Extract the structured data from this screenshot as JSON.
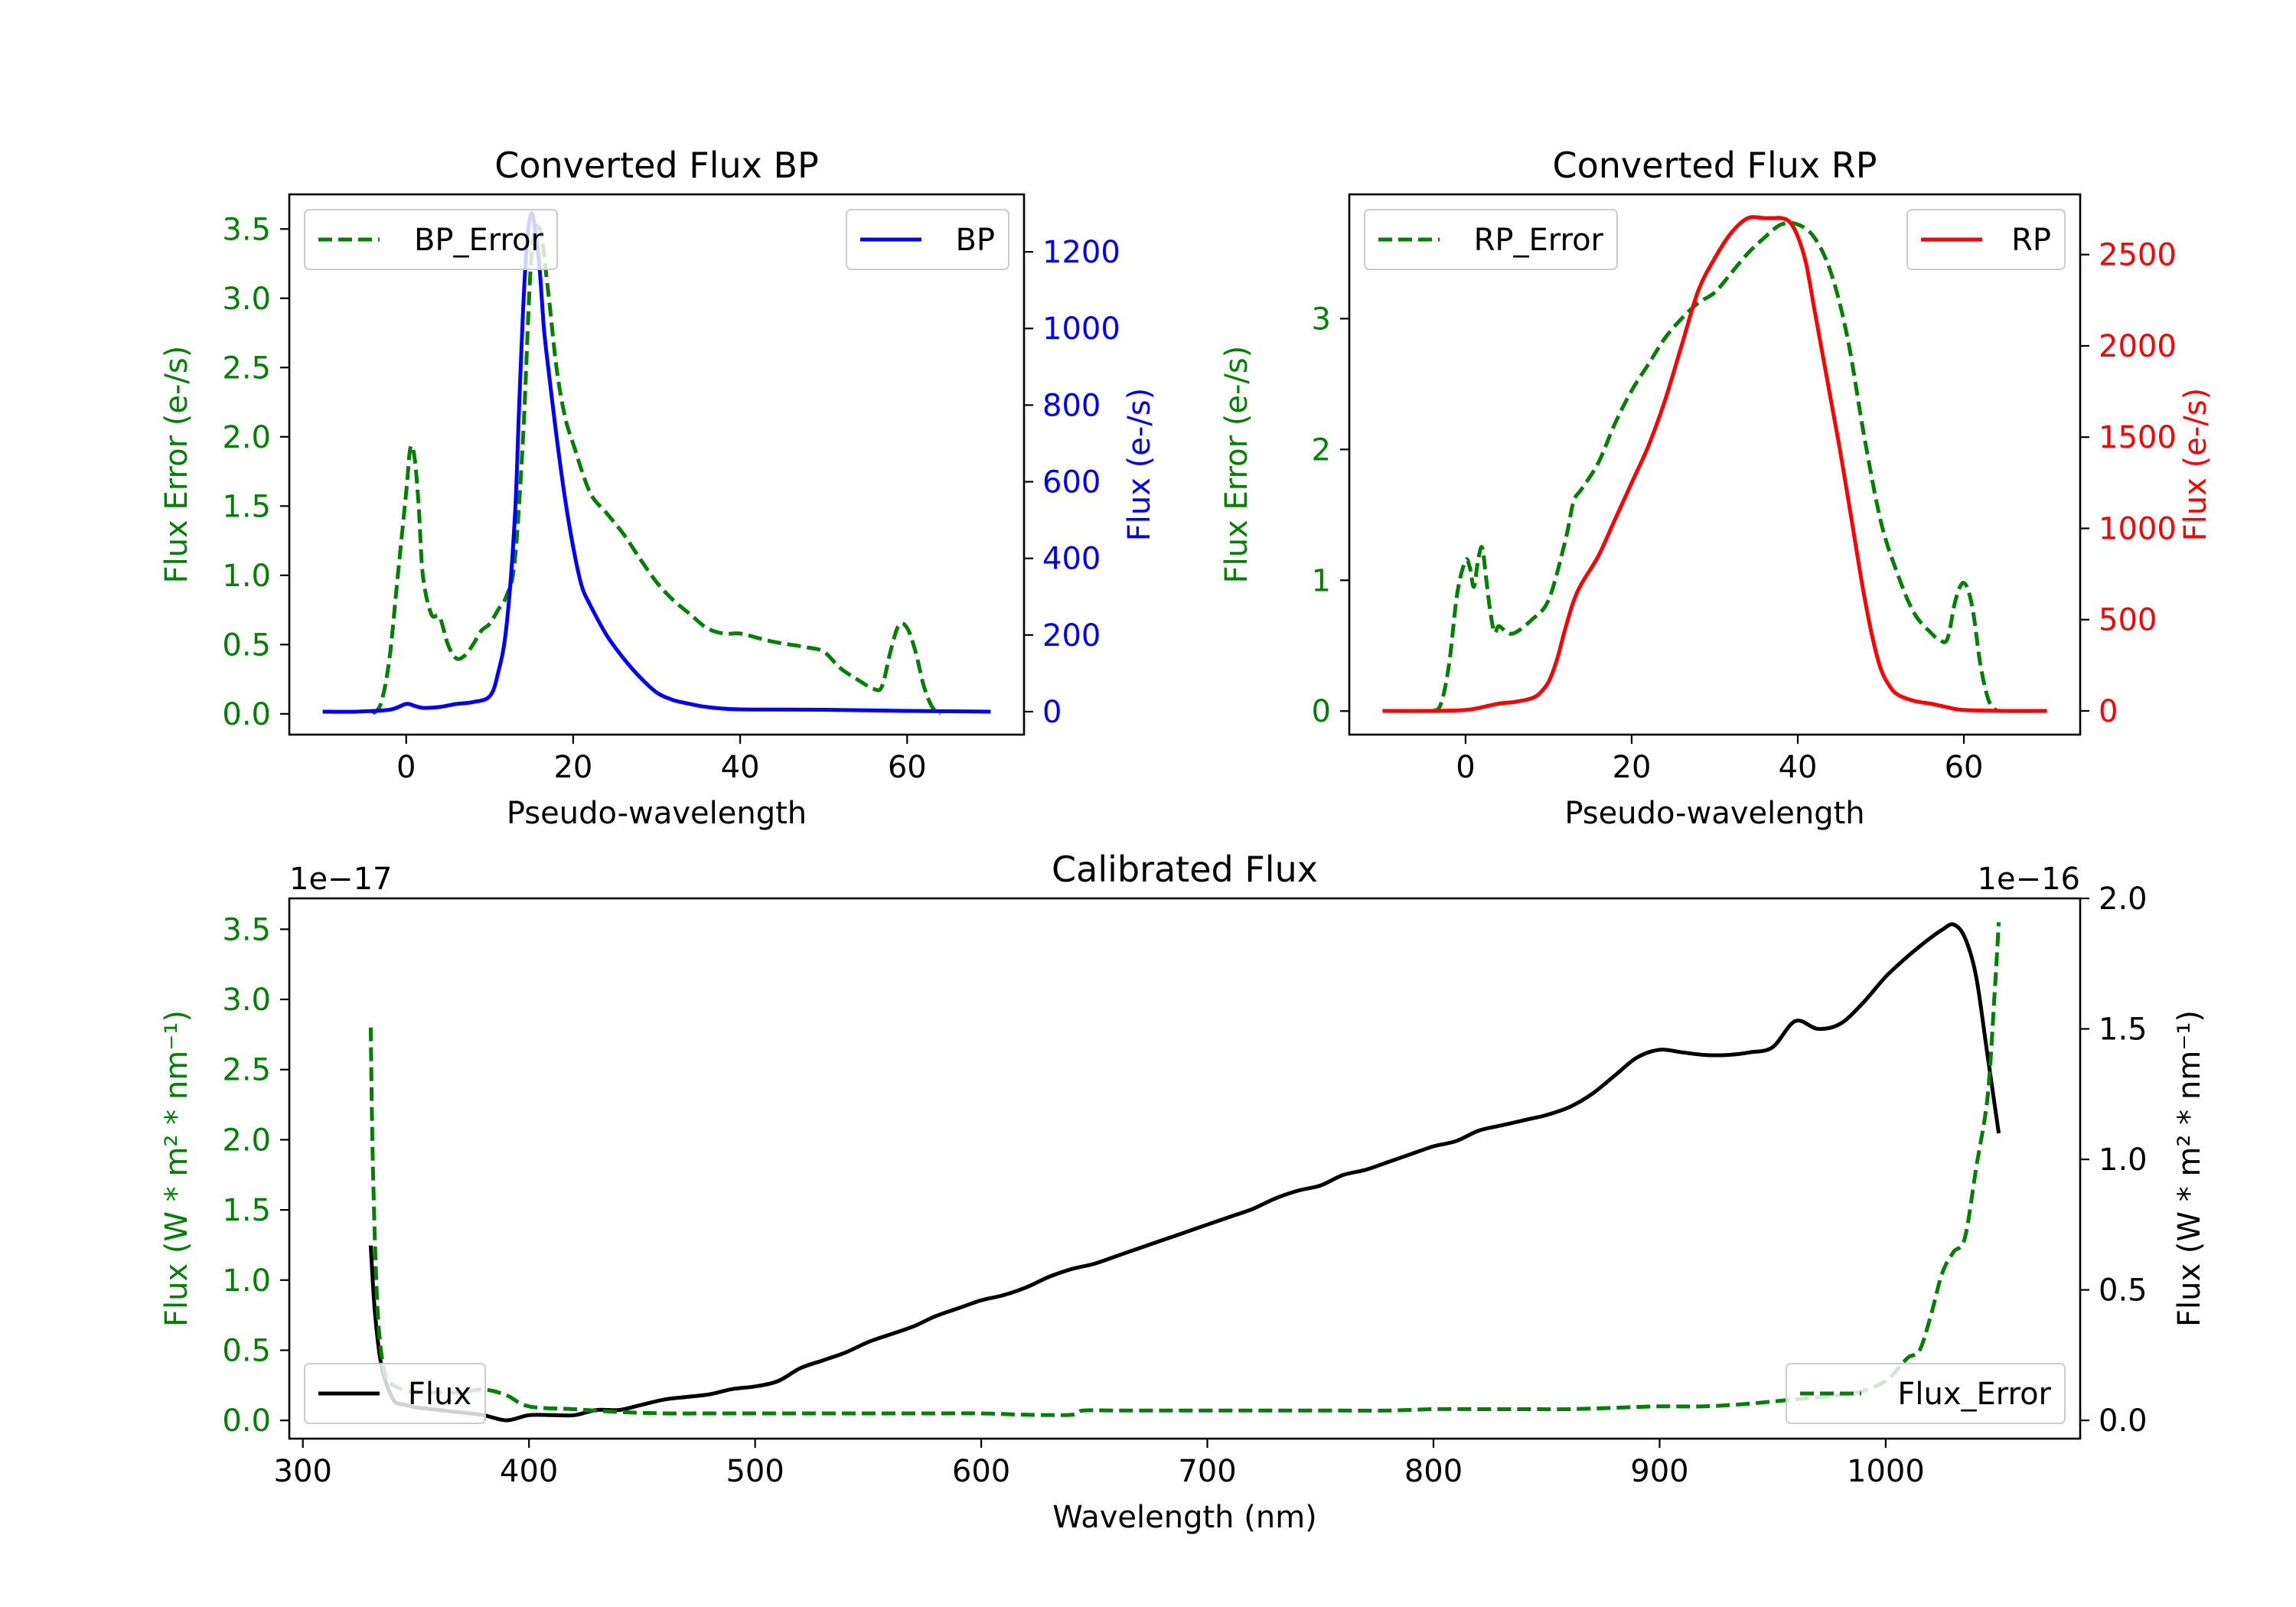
{
  "chart_data": [
    {
      "type": "line",
      "title": "Converted Flux BP",
      "xlabel": "Pseudo-wavelength",
      "ylabel_left": "Flux Error (e-/s)",
      "ylabel_right": "Flux (e-/s)",
      "xlim": [
        -14,
        74
      ],
      "ylim_left": [
        -0.15,
        3.75
      ],
      "ylim_right": [
        -60,
        1350
      ],
      "xticks": [
        0,
        20,
        40,
        60
      ],
      "yticks_left": [
        0.0,
        0.5,
        1.0,
        1.5,
        2.0,
        2.5,
        3.0,
        3.5
      ],
      "yticks_right": [
        0,
        200,
        400,
        600,
        800,
        1000,
        1200
      ],
      "ytick_labels_left": [
        "0.0",
        "0.5",
        "1.0",
        "1.5",
        "2.0",
        "2.5",
        "3.0",
        "3.5"
      ],
      "ytick_labels_right": [
        "0",
        "200",
        "400",
        "600",
        "800",
        "1000",
        "1200"
      ],
      "left_color": "#008000",
      "right_color": "#0000ff",
      "series": [
        {
          "name": "BP_Error",
          "axis": "left",
          "color": "#008000",
          "style": "dashed",
          "legend": "upper left",
          "x": [
            -4,
            -3,
            -2,
            -1,
            0,
            0.5,
            1,
            1.5,
            2,
            3,
            4,
            5,
            6,
            7,
            8,
            9,
            10,
            11,
            12,
            13,
            14,
            15,
            16,
            17,
            18,
            19,
            20,
            22,
            24,
            26,
            28,
            30,
            32,
            34,
            36,
            38,
            40,
            42,
            44,
            46,
            48,
            50,
            52,
            54,
            56,
            57,
            58,
            59,
            60,
            61,
            62,
            63,
            64
          ],
          "values": [
            0.0,
            0.08,
            0.4,
            1.0,
            1.6,
            1.92,
            1.85,
            1.5,
            1.0,
            0.72,
            0.7,
            0.5,
            0.4,
            0.42,
            0.5,
            0.6,
            0.65,
            0.75,
            0.85,
            1.1,
            2.0,
            3.3,
            3.5,
            3.05,
            2.5,
            2.15,
            1.95,
            1.6,
            1.45,
            1.3,
            1.12,
            0.95,
            0.82,
            0.72,
            0.62,
            0.58,
            0.58,
            0.55,
            0.52,
            0.5,
            0.48,
            0.45,
            0.33,
            0.25,
            0.18,
            0.2,
            0.45,
            0.64,
            0.62,
            0.45,
            0.2,
            0.05,
            0.0
          ]
        },
        {
          "name": "BP",
          "axis": "right",
          "color": "#0000ff",
          "style": "solid",
          "legend": "upper right",
          "x": [
            -10,
            -6,
            -2,
            0,
            1,
            2,
            4,
            6,
            8,
            10,
            11,
            12,
            13,
            13.5,
            14,
            14.5,
            15,
            15.5,
            16,
            16.5,
            17,
            18,
            19,
            20,
            21,
            22,
            24,
            26,
            28,
            30,
            32,
            34,
            36,
            40,
            50,
            60,
            70
          ],
          "values": [
            0,
            0,
            5,
            20,
            15,
            10,
            12,
            20,
            25,
            40,
            100,
            220,
            500,
            780,
            1050,
            1230,
            1300,
            1250,
            1150,
            1000,
            900,
            720,
            560,
            430,
            330,
            280,
            200,
            140,
            90,
            50,
            30,
            20,
            12,
            6,
            5,
            2,
            0
          ]
        }
      ]
    },
    {
      "type": "line",
      "title": "Converted Flux RP",
      "xlabel": "Pseudo-wavelength",
      "ylabel_left": "Flux Error (e-/s)",
      "ylabel_right": "Flux (e-/s)",
      "xlim": [
        -14,
        74
      ],
      "ylim_left": [
        -0.18,
        3.95
      ],
      "ylim_right": [
        -130,
        2830
      ],
      "xticks": [
        0,
        20,
        40,
        60
      ],
      "yticks_left": [
        0,
        1,
        2,
        3
      ],
      "yticks_right": [
        0,
        500,
        1000,
        1500,
        2000,
        2500
      ],
      "ytick_labels_left": [
        "0",
        "1",
        "2",
        "3"
      ],
      "ytick_labels_right": [
        "0",
        "500",
        "1000",
        "1500",
        "2000",
        "2500"
      ],
      "left_color": "#008000",
      "right_color": "#ff0000",
      "series": [
        {
          "name": "RP_Error",
          "axis": "left",
          "color": "#008000",
          "style": "dashed",
          "legend": "upper left",
          "x": [
            -4,
            -3,
            -2,
            -1,
            0,
            0.5,
            1,
            1.5,
            2,
            2.5,
            3,
            3.5,
            4,
            5,
            6,
            8,
            10,
            12,
            13,
            14,
            16,
            18,
            20,
            22,
            24,
            26,
            28,
            30,
            32,
            34,
            36,
            38,
            40,
            42,
            44,
            46,
            48,
            50,
            52,
            54,
            56,
            57,
            58,
            59,
            60,
            61,
            62,
            63,
            64
          ],
          "values": [
            0.0,
            0.05,
            0.35,
            0.9,
            1.15,
            1.1,
            0.95,
            1.15,
            1.25,
            1.0,
            0.75,
            0.6,
            0.65,
            0.6,
            0.6,
            0.7,
            0.85,
            1.3,
            1.6,
            1.7,
            1.9,
            2.2,
            2.45,
            2.65,
            2.85,
            3.0,
            3.12,
            3.2,
            3.35,
            3.5,
            3.62,
            3.72,
            3.72,
            3.62,
            3.35,
            2.85,
            2.1,
            1.45,
            1.05,
            0.75,
            0.6,
            0.55,
            0.55,
            0.85,
            0.98,
            0.8,
            0.35,
            0.08,
            0.0
          ]
        },
        {
          "name": "RP",
          "axis": "right",
          "color": "#ff0000",
          "style": "solid",
          "legend": "upper right",
          "x": [
            -10,
            -4,
            0,
            2,
            4,
            6,
            8,
            9,
            10,
            11,
            12,
            13,
            14,
            16,
            18,
            20,
            22,
            24,
            26,
            28,
            30,
            32,
            34,
            36,
            37,
            38,
            39,
            40,
            41,
            42,
            43,
            44,
            45,
            46,
            47,
            48,
            49,
            50,
            51,
            52,
            54,
            56,
            58,
            60,
            65,
            70
          ],
          "values": [
            0,
            0,
            5,
            20,
            40,
            50,
            70,
            100,
            160,
            280,
            450,
            600,
            700,
            850,
            1050,
            1250,
            1450,
            1700,
            2000,
            2300,
            2480,
            2620,
            2700,
            2700,
            2700,
            2700,
            2680,
            2600,
            2450,
            2200,
            1950,
            1700,
            1450,
            1180,
            900,
            630,
            400,
            230,
            140,
            90,
            55,
            40,
            20,
            5,
            0,
            0
          ]
        }
      ]
    },
    {
      "type": "line",
      "title": "Calibrated Flux",
      "xlabel": "Wavelength (nm)",
      "ylabel_left": "Flux (W * m² * nm⁻¹)",
      "ylabel_right": "Flux (W * m² * nm⁻¹)",
      "offset_left": "1e−17",
      "offset_right": "1e−16",
      "xlim": [
        294,
        1086
      ],
      "ylim_left": [
        -0.13,
        3.72
      ],
      "ylim_right": [
        -0.07,
        2.0
      ],
      "xticks": [
        300,
        400,
        500,
        600,
        700,
        800,
        900,
        1000
      ],
      "yticks_left": [
        0.0,
        0.5,
        1.0,
        1.5,
        2.0,
        2.5,
        3.0,
        3.5
      ],
      "yticks_right": [
        0.0,
        0.5,
        1.0,
        1.5,
        2.0
      ],
      "ytick_labels_left": [
        "0.0",
        "0.5",
        "1.0",
        "1.5",
        "2.0",
        "2.5",
        "3.0",
        "3.5"
      ],
      "ytick_labels_right": [
        "0.0",
        "0.5",
        "1.0",
        "1.5",
        "2.0"
      ],
      "left_color": "#008000",
      "right_color": "#000000",
      "series": [
        {
          "name": "Flux",
          "axis": "right",
          "color": "#000000",
          "style": "solid",
          "legend": "lower left",
          "x": [
            330,
            332,
            335,
            340,
            345,
            350,
            360,
            370,
            380,
            390,
            400,
            410,
            420,
            430,
            440,
            450,
            460,
            470,
            480,
            490,
            500,
            510,
            520,
            530,
            540,
            550,
            560,
            570,
            580,
            590,
            600,
            610,
            620,
            630,
            640,
            650,
            660,
            670,
            680,
            690,
            700,
            710,
            720,
            730,
            740,
            750,
            760,
            770,
            780,
            790,
            800,
            810,
            820,
            830,
            840,
            850,
            860,
            870,
            880,
            890,
            900,
            910,
            920,
            930,
            940,
            950,
            960,
            970,
            980,
            990,
            1000,
            1010,
            1020,
            1025,
            1030,
            1035,
            1040,
            1045,
            1050
          ],
          "values": [
            0.67,
            0.4,
            0.2,
            0.08,
            0.06,
            0.05,
            0.04,
            0.03,
            0.02,
            0.0,
            0.02,
            0.02,
            0.02,
            0.04,
            0.04,
            0.06,
            0.08,
            0.09,
            0.1,
            0.12,
            0.13,
            0.15,
            0.2,
            0.23,
            0.26,
            0.3,
            0.33,
            0.36,
            0.4,
            0.43,
            0.46,
            0.48,
            0.51,
            0.55,
            0.58,
            0.6,
            0.63,
            0.66,
            0.69,
            0.72,
            0.75,
            0.78,
            0.81,
            0.85,
            0.88,
            0.9,
            0.94,
            0.96,
            0.99,
            1.02,
            1.05,
            1.07,
            1.11,
            1.13,
            1.15,
            1.17,
            1.2,
            1.25,
            1.32,
            1.39,
            1.42,
            1.41,
            1.4,
            1.4,
            1.41,
            1.43,
            1.53,
            1.5,
            1.52,
            1.6,
            1.7,
            1.78,
            1.85,
            1.88,
            1.9,
            1.85,
            1.7,
            1.4,
            1.1
          ]
        },
        {
          "name": "Flux_Error",
          "axis": "left",
          "color": "#008000",
          "style": "dashed",
          "legend": "lower right",
          "x": [
            330,
            331,
            333,
            336,
            340,
            350,
            360,
            370,
            380,
            390,
            400,
            420,
            440,
            460,
            480,
            500,
            520,
            540,
            560,
            580,
            600,
            620,
            640,
            645,
            660,
            680,
            700,
            720,
            740,
            760,
            780,
            800,
            820,
            840,
            860,
            880,
            900,
            920,
            940,
            960,
            980,
            990,
            1000,
            1005,
            1010,
            1015,
            1020,
            1025,
            1030,
            1035,
            1040,
            1045,
            1048,
            1050
          ],
          "values": [
            2.8,
            1.8,
            0.8,
            0.35,
            0.25,
            0.2,
            0.2,
            0.2,
            0.22,
            0.18,
            0.1,
            0.08,
            0.06,
            0.05,
            0.05,
            0.05,
            0.05,
            0.05,
            0.05,
            0.05,
            0.05,
            0.04,
            0.04,
            0.07,
            0.07,
            0.07,
            0.07,
            0.07,
            0.07,
            0.07,
            0.07,
            0.08,
            0.08,
            0.08,
            0.08,
            0.09,
            0.1,
            0.1,
            0.12,
            0.15,
            0.18,
            0.21,
            0.28,
            0.36,
            0.45,
            0.5,
            0.75,
            1.05,
            1.2,
            1.3,
            1.8,
            2.3,
            3.0,
            3.55
          ]
        }
      ]
    }
  ]
}
